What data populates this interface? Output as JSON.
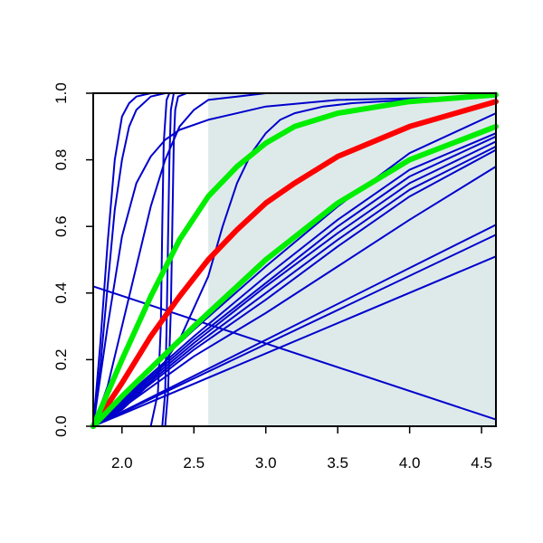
{
  "colors": {
    "background": "#ffffff",
    "shade": "#deeaea",
    "axis": "#000000",
    "blue": "#0000cc",
    "red": "#ff0000",
    "green": "#00ee00"
  },
  "chart_data": {
    "type": "line",
    "title": "",
    "xlabel": "",
    "ylabel": "",
    "xlim": [
      1.8,
      4.6
    ],
    "ylim": [
      0.0,
      1.0
    ],
    "grid": false,
    "shaded_region": {
      "x": [
        2.6,
        4.6
      ],
      "y": [
        0.0,
        1.0
      ]
    },
    "x_ticks": [
      2.0,
      2.5,
      3.0,
      3.5,
      4.0,
      4.5
    ],
    "x_tick_labels": [
      "2.0",
      "2.5",
      "3.0",
      "3.5",
      "4.0",
      "4.5"
    ],
    "y_ticks": [
      0.0,
      0.2,
      0.4,
      0.6,
      0.8,
      1.0
    ],
    "y_tick_labels": [
      "0.0",
      "0.2",
      "0.4",
      "0.6",
      "0.8",
      "1.0"
    ],
    "series": [
      {
        "color": "blue",
        "width": 2,
        "x": [
          1.8,
          1.85,
          1.9,
          1.95,
          2.0,
          2.05,
          2.1,
          2.2,
          2.3,
          2.5,
          3.0,
          4.6
        ],
        "y": [
          0.0,
          0.25,
          0.55,
          0.8,
          0.93,
          0.97,
          0.99,
          1.0,
          1.0,
          1.0,
          1.0,
          1.0
        ]
      },
      {
        "color": "blue",
        "width": 2,
        "x": [
          1.8,
          1.85,
          1.9,
          1.95,
          2.0,
          2.05,
          2.1,
          2.2,
          2.3,
          2.5,
          3.0,
          4.6
        ],
        "y": [
          0.0,
          0.18,
          0.42,
          0.65,
          0.8,
          0.9,
          0.95,
          0.99,
          1.0,
          1.0,
          1.0,
          1.0
        ]
      },
      {
        "color": "blue",
        "width": 2,
        "x": [
          1.8,
          1.9,
          2.0,
          2.1,
          2.2,
          2.3,
          2.4,
          2.6,
          3.0,
          3.5,
          4.6
        ],
        "y": [
          0.0,
          0.3,
          0.57,
          0.73,
          0.81,
          0.86,
          0.89,
          0.92,
          0.96,
          0.98,
          0.99
        ]
      },
      {
        "color": "blue",
        "width": 2,
        "x": [
          1.8,
          1.9,
          2.0,
          2.1,
          2.2,
          2.3,
          2.4,
          2.5,
          2.6,
          2.8,
          3.0,
          4.6
        ],
        "y": [
          0.0,
          0.12,
          0.3,
          0.48,
          0.66,
          0.8,
          0.9,
          0.95,
          0.98,
          0.99,
          1.0,
          1.0
        ]
      },
      {
        "color": "blue",
        "width": 2,
        "x": [
          1.8,
          2.2,
          2.25,
          2.27,
          2.28,
          2.29,
          2.31,
          2.33,
          2.4,
          4.6
        ],
        "y": [
          0.0,
          0.0,
          0.1,
          0.3,
          0.6,
          0.85,
          0.98,
          1.0,
          1.0,
          1.0
        ]
      },
      {
        "color": "blue",
        "width": 2,
        "x": [
          1.8,
          2.28,
          2.3,
          2.31,
          2.32,
          2.33,
          2.34,
          2.36,
          2.4,
          4.6
        ],
        "y": [
          0.0,
          0.0,
          0.1,
          0.3,
          0.55,
          0.8,
          0.95,
          1.0,
          1.0,
          1.0
        ]
      },
      {
        "color": "blue",
        "width": 2,
        "x": [
          1.8,
          2.3,
          2.32,
          2.34,
          2.35,
          2.36,
          2.37,
          2.39,
          2.45,
          4.6
        ],
        "y": [
          0.0,
          0.0,
          0.1,
          0.35,
          0.6,
          0.85,
          0.95,
          0.99,
          1.0,
          1.0
        ]
      },
      {
        "color": "blue",
        "width": 2,
        "x": [
          1.8,
          2.0,
          2.2,
          2.4,
          2.6,
          2.7,
          2.8,
          2.9,
          3.0,
          3.1,
          3.2,
          3.4,
          3.6,
          4.0,
          4.6
        ],
        "y": [
          0.0,
          0.05,
          0.13,
          0.26,
          0.45,
          0.6,
          0.73,
          0.82,
          0.88,
          0.92,
          0.94,
          0.96,
          0.97,
          0.98,
          0.99
        ]
      },
      {
        "color": "blue",
        "width": 2,
        "x": [
          1.8,
          2.0,
          2.5,
          3.0,
          3.5,
          4.0,
          4.6
        ],
        "y": [
          0.0,
          0.09,
          0.29,
          0.48,
          0.66,
          0.82,
          0.94
        ]
      },
      {
        "color": "blue",
        "width": 2,
        "x": [
          1.8,
          2.0,
          2.5,
          3.0,
          3.5,
          4.0,
          4.6
        ],
        "y": [
          0.0,
          0.08,
          0.27,
          0.45,
          0.62,
          0.77,
          0.88
        ]
      },
      {
        "color": "blue",
        "width": 2,
        "x": [
          1.8,
          2.0,
          2.5,
          3.0,
          3.5,
          4.0,
          4.6
        ],
        "y": [
          0.0,
          0.075,
          0.26,
          0.43,
          0.6,
          0.75,
          0.87
        ]
      },
      {
        "color": "blue",
        "width": 2,
        "x": [
          1.8,
          2.0,
          2.5,
          3.0,
          3.5,
          4.0,
          4.6
        ],
        "y": [
          0.0,
          0.07,
          0.25,
          0.42,
          0.58,
          0.73,
          0.855
        ]
      },
      {
        "color": "blue",
        "width": 2,
        "x": [
          1.8,
          2.0,
          2.5,
          3.0,
          3.5,
          4.0,
          4.6
        ],
        "y": [
          0.0,
          0.065,
          0.24,
          0.4,
          0.56,
          0.71,
          0.84
        ]
      },
      {
        "color": "blue",
        "width": 2,
        "x": [
          1.8,
          2.0,
          2.5,
          3.0,
          3.5,
          4.0,
          4.6
        ],
        "y": [
          0.0,
          0.06,
          0.23,
          0.38,
          0.54,
          0.69,
          0.83
        ]
      },
      {
        "color": "blue",
        "width": 2,
        "x": [
          1.8,
          2.0,
          2.5,
          3.0,
          3.5,
          4.0,
          4.6
        ],
        "y": [
          0.0,
          0.055,
          0.21,
          0.34,
          0.48,
          0.62,
          0.78
        ]
      },
      {
        "color": "blue",
        "width": 2,
        "x": [
          1.8,
          4.6
        ],
        "y": [
          0.0,
          0.605
        ]
      },
      {
        "color": "blue",
        "width": 2,
        "x": [
          1.8,
          4.6
        ],
        "y": [
          0.0,
          0.575
        ]
      },
      {
        "color": "blue",
        "width": 2,
        "x": [
          1.8,
          4.6
        ],
        "y": [
          0.0,
          0.51
        ]
      },
      {
        "color": "blue",
        "width": 2,
        "x": [
          1.8,
          4.6
        ],
        "y": [
          0.42,
          0.02
        ]
      },
      {
        "color": "red",
        "width": 6,
        "x": [
          1.8,
          2.0,
          2.2,
          2.4,
          2.6,
          2.8,
          3.0,
          3.2,
          3.5,
          4.0,
          4.6
        ],
        "y": [
          0.0,
          0.13,
          0.27,
          0.39,
          0.5,
          0.59,
          0.67,
          0.73,
          0.81,
          0.9,
          0.975
        ]
      },
      {
        "color": "green",
        "width": 6,
        "x": [
          1.8,
          2.0,
          2.2,
          2.4,
          2.6,
          2.8,
          3.0,
          3.2,
          3.5,
          4.0,
          4.6
        ],
        "y": [
          0.0,
          0.2,
          0.39,
          0.56,
          0.69,
          0.78,
          0.85,
          0.9,
          0.94,
          0.975,
          0.995
        ]
      },
      {
        "color": "green",
        "width": 6,
        "x": [
          1.8,
          2.0,
          2.5,
          3.0,
          3.5,
          4.0,
          4.6
        ],
        "y": [
          0.0,
          0.09,
          0.3,
          0.5,
          0.67,
          0.8,
          0.9
        ]
      }
    ]
  }
}
